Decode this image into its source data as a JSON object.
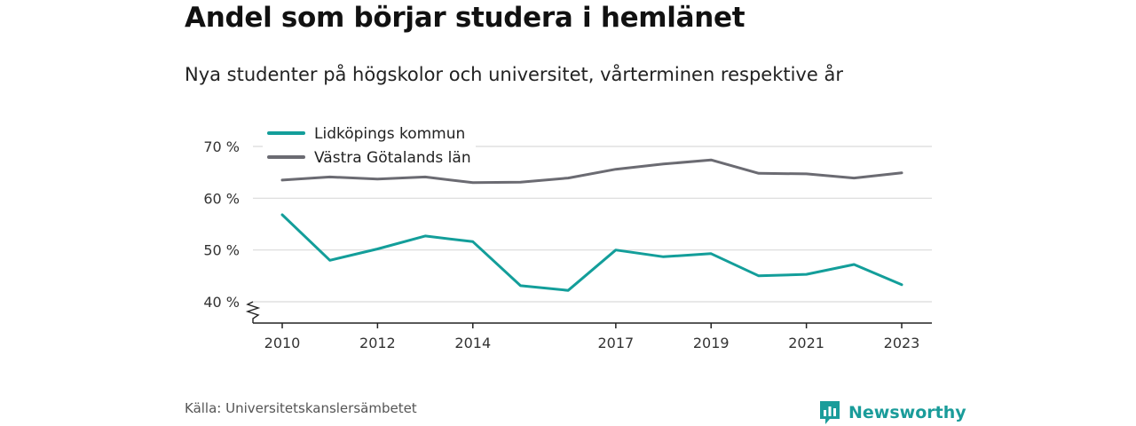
{
  "header": {
    "title": "Andel som börjar studera i hemlänet",
    "subtitle": "Nya studenter på högskolor och universitet, vårterminen respektive år"
  },
  "footer": {
    "source": "Källa: Universitetskanslersämbetet",
    "brand": "Newsworthy"
  },
  "colors": {
    "lidkoping": "#139e9a",
    "vastra_gotaland": "#6b6b72",
    "grid": "#d9d9d9",
    "axis": "#222222",
    "brand": "#1a9c9a"
  },
  "chart_data": {
    "type": "line",
    "title": "Andel som börjar studera i hemlänet",
    "subtitle": "Nya studenter på högskolor och universitet, vårterminen respektive år",
    "x": [
      2010,
      2011,
      2012,
      2013,
      2014,
      2015,
      2016,
      2017,
      2018,
      2019,
      2020,
      2021,
      2022,
      2023
    ],
    "x_tick_labels": [
      "2010",
      "2012",
      "2014",
      "2017",
      "2019",
      "2021",
      "2023"
    ],
    "y_tick_labels": [
      "40 %",
      "50 %",
      "60 %",
      "70 %"
    ],
    "y_ticks": [
      40,
      50,
      60,
      70
    ],
    "ylim": [
      36,
      72
    ],
    "y_axis_break": true,
    "grid": true,
    "legend_position": "top-left",
    "series": [
      {
        "name": "Lidköpings kommun",
        "color": "#139e9a",
        "values": [
          56.8,
          48.0,
          50.2,
          52.7,
          51.6,
          43.1,
          42.2,
          50.0,
          48.7,
          49.3,
          45.0,
          45.3,
          47.2,
          43.3
        ]
      },
      {
        "name": "Västra Götalands län",
        "color": "#6b6b72",
        "values": [
          63.5,
          64.1,
          63.7,
          64.1,
          63.0,
          63.1,
          63.9,
          65.6,
          66.6,
          67.4,
          64.8,
          64.7,
          63.9,
          64.9
        ]
      }
    ]
  }
}
